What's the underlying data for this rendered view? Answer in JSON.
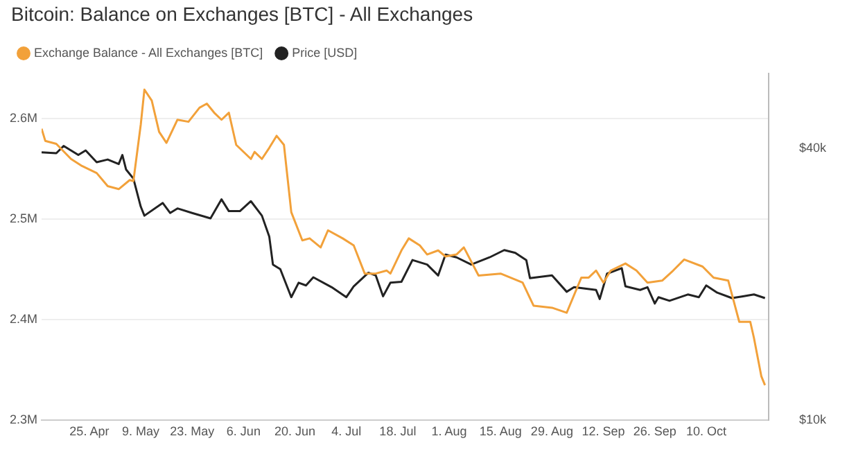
{
  "chart_data": {
    "type": "line",
    "title": "Bitcoin: Balance on Exchanges [BTC] - All Exchanges",
    "xlim": [
      "--04-12",
      "--10-27"
    ],
    "xticks": [
      {
        "value": "--04-25",
        "label": "25. Apr"
      },
      {
        "value": "--05-09",
        "label": "9. May"
      },
      {
        "value": "--05-23",
        "label": "23. May"
      },
      {
        "value": "--06-06",
        "label": "6. Jun"
      },
      {
        "value": "--06-20",
        "label": "20. Jun"
      },
      {
        "value": "--07-04",
        "label": "4. Jul"
      },
      {
        "value": "--07-18",
        "label": "18. Jul"
      },
      {
        "value": "--08-01",
        "label": "1. Aug"
      },
      {
        "value": "--08-15",
        "label": "15. Aug"
      },
      {
        "value": "--08-29",
        "label": "29. Aug"
      },
      {
        "value": "--09-12",
        "label": "12. Sep"
      },
      {
        "value": "--09-26",
        "label": "26. Sep"
      },
      {
        "value": "--10-10",
        "label": "10. Oct"
      }
    ],
    "ylim": [
      2300000,
      2645000
    ],
    "yticks": [
      {
        "value": 2300000,
        "label": "2.3M"
      },
      {
        "value": 2400000,
        "label": "2.4M"
      },
      {
        "value": 2500000,
        "label": "2.5M"
      },
      {
        "value": 2600000,
        "label": "2.6M"
      }
    ],
    "y2lim": [
      10000,
      48300
    ],
    "y2ticks": [
      {
        "value": 10000,
        "label": "$10k"
      },
      {
        "value": 40000,
        "label": "$40k"
      }
    ],
    "grid": "y",
    "legend": "top left",
    "marker": "none",
    "line_style": "solid",
    "series": [
      {
        "name": "Exchange Balance - All Exchanges [BTC]",
        "color": "#f2a13a",
        "x": [
          "--04-12",
          "--04-13",
          "--04-16",
          "--04-20",
          "--04-23",
          "--04-27",
          "--04-30",
          "--05-03",
          "--05-06",
          "--05-07",
          "--05-09",
          "--05-10",
          "--05-12",
          "--05-14",
          "--05-16",
          "--05-19",
          "--05-22",
          "--05-25",
          "--05-27",
          "--05-29",
          "--05-31",
          "--06-02",
          "--06-04",
          "--06-08",
          "--06-09",
          "--06-11",
          "--06-13",
          "--06-15",
          "--06-17",
          "--06-19",
          "--06-22",
          "--06-24",
          "--06-27",
          "--06-29",
          "--07-03",
          "--07-06",
          "--07-09",
          "--07-12",
          "--07-15",
          "--07-16",
          "--07-19",
          "--07-21",
          "--07-24",
          "--07-26",
          "--07-29",
          "--07-31",
          "--08-03",
          "--08-05",
          "--08-09",
          "--08-15",
          "--08-21",
          "--08-24",
          "--08-29",
          "--09-02",
          "--09-06",
          "--09-08",
          "--09-10",
          "--09-12",
          "--09-14",
          "--09-18",
          "--09-21",
          "--09-24",
          "--09-28",
          "--10-01",
          "--10-04",
          "--10-09",
          "--10-12",
          "--10-16",
          "--10-19",
          "--10-22",
          "--10-23",
          "--10-25",
          "--10-26"
        ],
        "values": [
          2590000,
          2578000,
          2575000,
          2560000,
          2553000,
          2546000,
          2533000,
          2530000,
          2539000,
          2538000,
          2594000,
          2629000,
          2618000,
          2587000,
          2576000,
          2599000,
          2597000,
          2611000,
          2615000,
          2606000,
          2599000,
          2606000,
          2574000,
          2560000,
          2567000,
          2560000,
          2571000,
          2583000,
          2574000,
          2507000,
          2479000,
          2481000,
          2472000,
          2489000,
          2481000,
          2474000,
          2446000,
          2446000,
          2449000,
          2446000,
          2469000,
          2481000,
          2474000,
          2465000,
          2469000,
          2463000,
          2465000,
          2472000,
          2444000,
          2446000,
          2437000,
          2414000,
          2412000,
          2407000,
          2442000,
          2442000,
          2449000,
          2437000,
          2449000,
          2456000,
          2449000,
          2437000,
          2439000,
          2449000,
          2460000,
          2453000,
          2442000,
          2439000,
          2398000,
          2398000,
          2382000,
          2344000,
          2335000
        ]
      },
      {
        "name": "Price [USD]",
        "color": "#222222",
        "axis": "y2",
        "x": [
          "--04-12",
          "--04-16",
          "--04-18",
          "--04-22",
          "--04-24",
          "--04-27",
          "--04-30",
          "--05-03",
          "--05-04",
          "--05-05",
          "--05-07",
          "--05-09",
          "--05-10",
          "--05-15",
          "--05-17",
          "--05-19",
          "--05-23",
          "--05-28",
          "--05-31",
          "--06-02",
          "--06-05",
          "--06-08",
          "--06-11",
          "--06-13",
          "--06-14",
          "--06-16",
          "--06-19",
          "--06-21",
          "--06-23",
          "--06-25",
          "--06-30",
          "--07-04",
          "--07-06",
          "--07-10",
          "--07-12",
          "--07-14",
          "--07-16",
          "--07-19",
          "--07-22",
          "--07-26",
          "--07-29",
          "--07-31",
          "--08-03",
          "--08-07",
          "--08-12",
          "--08-16",
          "--08-19",
          "--08-22",
          "--08-23",
          "--08-29",
          "--09-02",
          "--09-04",
          "--09-10",
          "--09-11",
          "--09-13",
          "--09-17",
          "--09-18",
          "--09-22",
          "--09-24",
          "--09-26",
          "--09-27",
          "--09-30",
          "--10-05",
          "--10-08",
          "--10-10",
          "--10-13",
          "--10-17",
          "--10-20",
          "--10-23",
          "--10-26"
        ],
        "values": [
          39600,
          39500,
          40300,
          39300,
          39800,
          38500,
          38800,
          38300,
          39300,
          37700,
          36700,
          33600,
          32600,
          34000,
          32900,
          33400,
          32900,
          32300,
          34400,
          33100,
          33100,
          34200,
          32600,
          30300,
          27200,
          26700,
          23600,
          25200,
          24900,
          25800,
          24700,
          23600,
          24800,
          26300,
          26000,
          23700,
          25200,
          25300,
          27700,
          27200,
          26000,
          28300,
          28000,
          27200,
          28000,
          28800,
          28500,
          27700,
          25700,
          26000,
          24200,
          24700,
          24400,
          23400,
          26200,
          26800,
          24800,
          24400,
          24700,
          22900,
          23600,
          23200,
          23900,
          23600,
          24900,
          24100,
          23500,
          23700,
          23900,
          23500
        ]
      }
    ]
  }
}
